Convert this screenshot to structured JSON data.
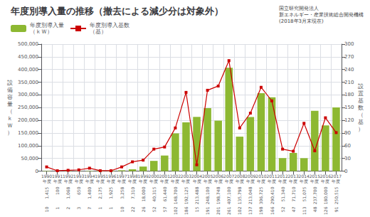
{
  "chart_data": {
    "type": "bar",
    "title": "年度別導入量の推移（撤去による減少分は対象外）",
    "subtitle": "国立研究開発法人\n新エネルギー・産業技術総合開発機構\n(2018年3月末現在)",
    "ylabel": "設\n備\n容\n量\n（\nｋ\nＷ\n）",
    "y2label": "設\n置\n基\n数\n（\n基\n）",
    "categories": [
      "1990\n年度",
      "1991\n年度",
      "1992\n年度",
      "1993\n年度",
      "1994\n年度",
      "1995\n年度",
      "1996\n年度",
      "1997\n年度",
      "1998\n年度",
      "1999\n年度",
      "2000\n年度",
      "2001\n年度",
      "2002\n年度",
      "2003\n年度",
      "2004\n年度",
      "2005\n年度",
      "2006\n年度",
      "2007\n年度",
      "2008\n年度",
      "2009\n年度",
      "2010\n年度",
      "2011\n年度",
      "2012\n年度",
      "2013\n年度",
      "2014\n年度",
      "2015\n年度",
      "2016\n年度",
      "2017\n年度"
    ],
    "series": [
      {
        "name": "年度別導入量\n（ｋＷ）",
        "type": "bar",
        "color": "#8db832",
        "values": [
          1415,
          100,
          1068,
          650,
          1400,
          2175,
          1925,
          3258,
          7310,
          18000,
          40315,
          61440,
          148700,
          192125,
          213488,
          248100,
          198748,
          407100,
          135798,
          213048,
          306725,
          290410,
          51340,
          71710,
          51075,
          237700,
          180000,
          250515
        ],
        "value_labels": [
          "1,415",
          "100",
          "1,068",
          "650",
          "1,400",
          "2,175",
          "1,925",
          "3,258",
          "7,310",
          "18,000",
          "40,315",
          "61,440",
          "148,700",
          "192,125",
          "213,488",
          "248,100",
          "198,748",
          "407,100",
          "135,798",
          "213,048",
          "306,725",
          "290,410",
          "51,340",
          "71,710",
          "51,075",
          "237,700",
          "180,000",
          "250,515"
        ]
      },
      {
        "name": "年度別導入基数\n（基）",
        "type": "line",
        "axis": "y2",
        "color": "#cc0000",
        "marker": "square",
        "values": [
          10,
          1,
          2,
          3,
          7,
          1,
          1,
          10,
          22,
          26,
          52,
          57,
          102,
          186,
          15,
          191,
          201,
          261,
          102,
          137,
          198,
          166,
          52,
          47,
          113,
          48,
          126,
          91
        ],
        "value_labels": [
          "10",
          "1",
          "2",
          "3",
          "7",
          "1",
          "1",
          "10",
          "22",
          "26",
          "52",
          "57",
          "102",
          "186",
          "15",
          "191",
          "201",
          "261",
          "102",
          "137",
          "198",
          "166",
          "52",
          "47",
          "113",
          "48",
          "126",
          "91"
        ]
      }
    ],
    "ylim": [
      0,
      500000
    ],
    "yticks": [
      0,
      {
        "value": 50000,
        "label": "50,000"
      },
      {
        "value": 100000,
        "label": "100,000"
      },
      {
        "value": 150000,
        "label": "150,000"
      },
      {
        "value": 200000,
        "label": "200,000"
      },
      {
        "value": 250000,
        "label": "250,000"
      },
      {
        "value": 300000,
        "label": "300,000"
      },
      {
        "value": 350000,
        "label": "350,000"
      },
      {
        "value": 400000,
        "label": "400,000"
      },
      {
        "value": 450000,
        "label": "450,000"
      },
      {
        "value": 500000,
        "label": "500,000"
      }
    ],
    "y2lim": [
      0,
      300
    ],
    "y2ticks": [
      0,
      30,
      60,
      90,
      120,
      150,
      180,
      210,
      240,
      270,
      300
    ],
    "grid": true,
    "legend": "upper left"
  }
}
